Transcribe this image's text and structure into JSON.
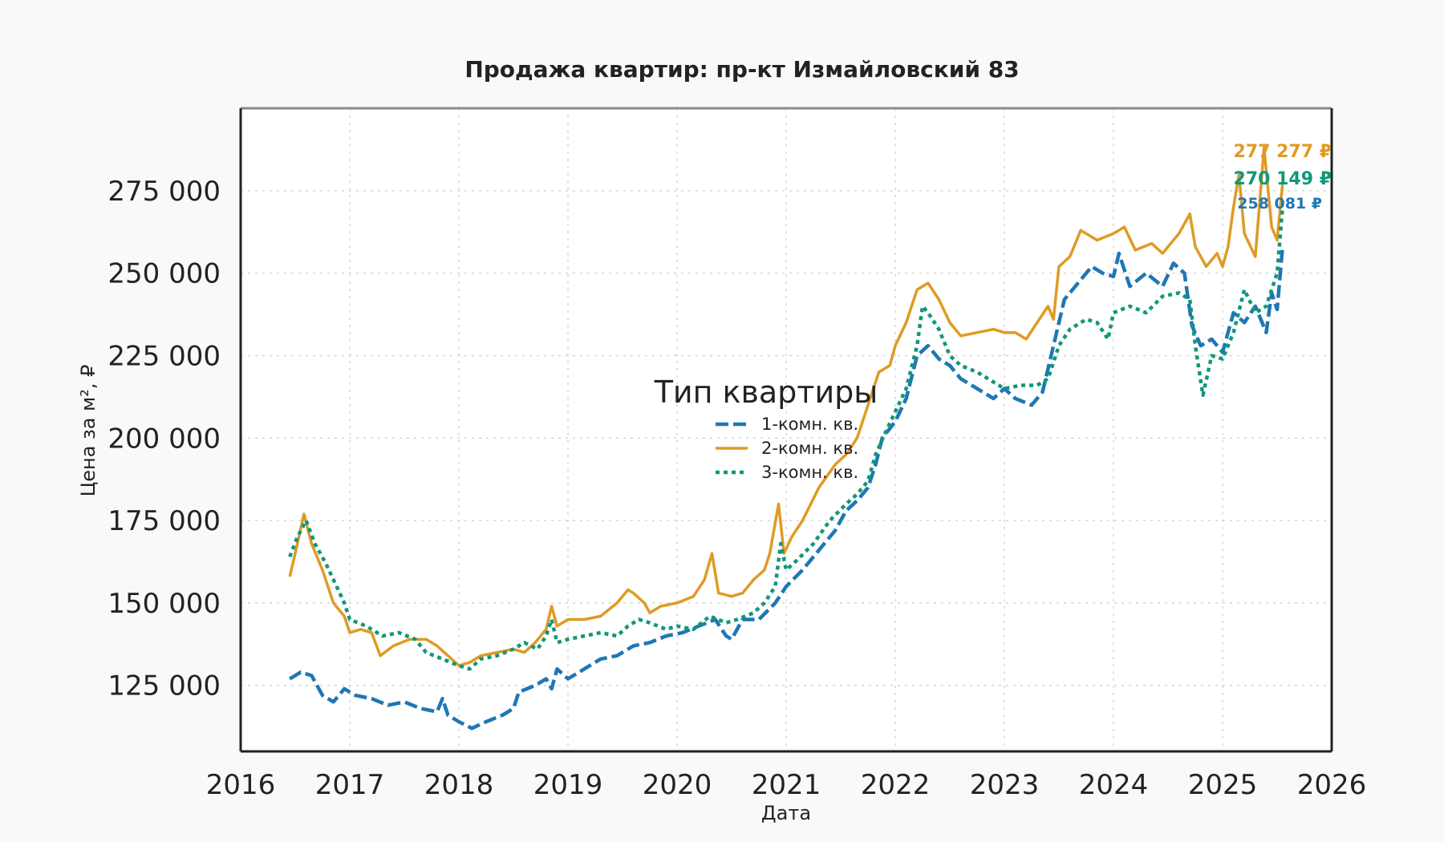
{
  "chart_data": {
    "type": "line",
    "title": "Продажа квартир: пр-кт Измайловский 83",
    "xlabel": "Дата",
    "ylabel": "Цена за м², ₽",
    "xlim": [
      2016,
      2026
    ],
    "ylim": [
      105000,
      300000
    ],
    "x_ticks": [
      "2016",
      "2017",
      "2018",
      "2019",
      "2020",
      "2021",
      "2022",
      "2023",
      "2024",
      "2025",
      "2026"
    ],
    "y_ticks": [
      "125 000",
      "150 000",
      "175 000",
      "200 000",
      "225 000",
      "250 000",
      "275 000"
    ],
    "y_tick_values": [
      125000,
      150000,
      175000,
      200000,
      225000,
      250000,
      275000
    ],
    "grid": true,
    "legend": {
      "title": "Тип квартиры",
      "placement": "center"
    },
    "series": [
      {
        "name": "1-комн. кв.",
        "color": "#1f77b4",
        "dash": "dashed",
        "end_label": "258 081 ₽",
        "points": [
          [
            2016.45,
            127000
          ],
          [
            2016.55,
            129000
          ],
          [
            2016.65,
            128000
          ],
          [
            2016.75,
            122000
          ],
          [
            2016.85,
            120000
          ],
          [
            2016.95,
            124000
          ],
          [
            2017.05,
            122000
          ],
          [
            2017.2,
            121000
          ],
          [
            2017.35,
            119000
          ],
          [
            2017.5,
            120000
          ],
          [
            2017.65,
            118000
          ],
          [
            2017.8,
            117000
          ],
          [
            2017.85,
            121000
          ],
          [
            2017.9,
            116000
          ],
          [
            2018.0,
            114000
          ],
          [
            2018.12,
            112000
          ],
          [
            2018.25,
            114000
          ],
          [
            2018.4,
            116000
          ],
          [
            2018.5,
            118000
          ],
          [
            2018.55,
            123000
          ],
          [
            2018.7,
            125000
          ],
          [
            2018.8,
            127000
          ],
          [
            2018.85,
            124000
          ],
          [
            2018.9,
            130000
          ],
          [
            2019.0,
            127000
          ],
          [
            2019.15,
            130000
          ],
          [
            2019.3,
            133000
          ],
          [
            2019.45,
            134000
          ],
          [
            2019.6,
            137000
          ],
          [
            2019.75,
            138000
          ],
          [
            2019.9,
            140000
          ],
          [
            2020.05,
            141000
          ],
          [
            2020.2,
            143000
          ],
          [
            2020.35,
            145000
          ],
          [
            2020.45,
            140000
          ],
          [
            2020.5,
            139000
          ],
          [
            2020.6,
            145000
          ],
          [
            2020.75,
            145000
          ],
          [
            2020.9,
            150000
          ],
          [
            2021.0,
            155000
          ],
          [
            2021.15,
            160000
          ],
          [
            2021.3,
            166000
          ],
          [
            2021.45,
            172000
          ],
          [
            2021.55,
            178000
          ],
          [
            2021.65,
            181000
          ],
          [
            2021.75,
            185000
          ],
          [
            2021.82,
            192000
          ],
          [
            2021.88,
            200000
          ],
          [
            2022.0,
            205000
          ],
          [
            2022.1,
            212000
          ],
          [
            2022.2,
            225000
          ],
          [
            2022.3,
            228000
          ],
          [
            2022.4,
            224000
          ],
          [
            2022.5,
            222000
          ],
          [
            2022.6,
            218000
          ],
          [
            2022.75,
            215000
          ],
          [
            2022.9,
            212000
          ],
          [
            2023.0,
            215000
          ],
          [
            2023.1,
            212000
          ],
          [
            2023.25,
            210000
          ],
          [
            2023.35,
            214000
          ],
          [
            2023.45,
            228000
          ],
          [
            2023.55,
            242000
          ],
          [
            2023.7,
            248000
          ],
          [
            2023.8,
            252000
          ],
          [
            2023.9,
            250000
          ],
          [
            2024.0,
            249000
          ],
          [
            2024.05,
            256000
          ],
          [
            2024.15,
            246000
          ],
          [
            2024.3,
            250000
          ],
          [
            2024.45,
            246000
          ],
          [
            2024.55,
            253000
          ],
          [
            2024.65,
            250000
          ],
          [
            2024.72,
            234000
          ],
          [
            2024.8,
            228000
          ],
          [
            2024.9,
            230000
          ],
          [
            2025.0,
            226000
          ],
          [
            2025.1,
            238000
          ],
          [
            2025.2,
            235000
          ],
          [
            2025.3,
            240000
          ],
          [
            2025.4,
            232000
          ],
          [
            2025.45,
            244000
          ],
          [
            2025.5,
            239000
          ],
          [
            2025.55,
            258081
          ]
        ]
      },
      {
        "name": "2-комн. кв.",
        "color": "#de9b24",
        "dash": "solid",
        "end_label": "277 277 ₽",
        "points": [
          [
            2016.45,
            158000
          ],
          [
            2016.5,
            165000
          ],
          [
            2016.58,
            177000
          ],
          [
            2016.65,
            168000
          ],
          [
            2016.75,
            160000
          ],
          [
            2016.85,
            150000
          ],
          [
            2016.95,
            146000
          ],
          [
            2017.0,
            141000
          ],
          [
            2017.1,
            142000
          ],
          [
            2017.2,
            141000
          ],
          [
            2017.28,
            134000
          ],
          [
            2017.4,
            137000
          ],
          [
            2017.55,
            139000
          ],
          [
            2017.7,
            139000
          ],
          [
            2017.8,
            137000
          ],
          [
            2017.9,
            134000
          ],
          [
            2018.0,
            131000
          ],
          [
            2018.1,
            132000
          ],
          [
            2018.2,
            134000
          ],
          [
            2018.35,
            135000
          ],
          [
            2018.5,
            136000
          ],
          [
            2018.6,
            135000
          ],
          [
            2018.7,
            138000
          ],
          [
            2018.8,
            142000
          ],
          [
            2018.85,
            149000
          ],
          [
            2018.9,
            143000
          ],
          [
            2019.0,
            145000
          ],
          [
            2019.15,
            145000
          ],
          [
            2019.3,
            146000
          ],
          [
            2019.45,
            150000
          ],
          [
            2019.55,
            154000
          ],
          [
            2019.6,
            153000
          ],
          [
            2019.7,
            150000
          ],
          [
            2019.75,
            147000
          ],
          [
            2019.85,
            149000
          ],
          [
            2020.0,
            150000
          ],
          [
            2020.15,
            152000
          ],
          [
            2020.25,
            157000
          ],
          [
            2020.32,
            165000
          ],
          [
            2020.38,
            153000
          ],
          [
            2020.5,
            152000
          ],
          [
            2020.6,
            153000
          ],
          [
            2020.7,
            157000
          ],
          [
            2020.8,
            160000
          ],
          [
            2020.85,
            165000
          ],
          [
            2020.93,
            180000
          ],
          [
            2020.98,
            165000
          ],
          [
            2021.05,
            170000
          ],
          [
            2021.15,
            175000
          ],
          [
            2021.3,
            185000
          ],
          [
            2021.45,
            192000
          ],
          [
            2021.55,
            195000
          ],
          [
            2021.65,
            200000
          ],
          [
            2021.75,
            210000
          ],
          [
            2021.85,
            220000
          ],
          [
            2021.95,
            222000
          ],
          [
            2022.0,
            228000
          ],
          [
            2022.1,
            235000
          ],
          [
            2022.2,
            245000
          ],
          [
            2022.3,
            247000
          ],
          [
            2022.4,
            242000
          ],
          [
            2022.5,
            235000
          ],
          [
            2022.6,
            231000
          ],
          [
            2022.75,
            232000
          ],
          [
            2022.9,
            233000
          ],
          [
            2023.0,
            232000
          ],
          [
            2023.1,
            232000
          ],
          [
            2023.2,
            230000
          ],
          [
            2023.3,
            235000
          ],
          [
            2023.4,
            240000
          ],
          [
            2023.45,
            236000
          ],
          [
            2023.5,
            252000
          ],
          [
            2023.6,
            255000
          ],
          [
            2023.7,
            263000
          ],
          [
            2023.85,
            260000
          ],
          [
            2024.0,
            262000
          ],
          [
            2024.1,
            264000
          ],
          [
            2024.2,
            257000
          ],
          [
            2024.35,
            259000
          ],
          [
            2024.45,
            256000
          ],
          [
            2024.6,
            262000
          ],
          [
            2024.7,
            268000
          ],
          [
            2024.75,
            258000
          ],
          [
            2024.85,
            252000
          ],
          [
            2024.95,
            256000
          ],
          [
            2025.0,
            252000
          ],
          [
            2025.05,
            258000
          ],
          [
            2025.1,
            270000
          ],
          [
            2025.15,
            280000
          ],
          [
            2025.2,
            262000
          ],
          [
            2025.3,
            255000
          ],
          [
            2025.38,
            288000
          ],
          [
            2025.45,
            264000
          ],
          [
            2025.5,
            260000
          ],
          [
            2025.55,
            277277
          ]
        ]
      },
      {
        "name": "3-комн. кв.",
        "color": "#11977a",
        "dash": "dotted",
        "end_label": "270 149 ₽",
        "points": [
          [
            2016.45,
            164000
          ],
          [
            2016.52,
            170000
          ],
          [
            2016.6,
            175000
          ],
          [
            2016.68,
            168000
          ],
          [
            2016.78,
            162000
          ],
          [
            2016.88,
            155000
          ],
          [
            2016.95,
            150000
          ],
          [
            2017.0,
            145000
          ],
          [
            2017.15,
            143000
          ],
          [
            2017.3,
            140000
          ],
          [
            2017.45,
            141000
          ],
          [
            2017.6,
            139000
          ],
          [
            2017.7,
            135000
          ],
          [
            2017.85,
            133000
          ],
          [
            2018.0,
            131000
          ],
          [
            2018.1,
            130000
          ],
          [
            2018.2,
            133000
          ],
          [
            2018.35,
            134000
          ],
          [
            2018.5,
            136000
          ],
          [
            2018.6,
            138000
          ],
          [
            2018.72,
            136000
          ],
          [
            2018.8,
            140000
          ],
          [
            2018.85,
            145000
          ],
          [
            2018.9,
            138000
          ],
          [
            2019.0,
            139000
          ],
          [
            2019.15,
            140000
          ],
          [
            2019.3,
            141000
          ],
          [
            2019.45,
            140000
          ],
          [
            2019.55,
            143000
          ],
          [
            2019.65,
            145000
          ],
          [
            2019.75,
            144000
          ],
          [
            2019.9,
            142000
          ],
          [
            2020.0,
            143000
          ],
          [
            2020.15,
            142000
          ],
          [
            2020.3,
            146000
          ],
          [
            2020.45,
            144000
          ],
          [
            2020.55,
            145000
          ],
          [
            2020.7,
            147000
          ],
          [
            2020.8,
            150000
          ],
          [
            2020.9,
            155000
          ],
          [
            2020.95,
            168000
          ],
          [
            2021.0,
            160000
          ],
          [
            2021.1,
            163000
          ],
          [
            2021.25,
            168000
          ],
          [
            2021.4,
            175000
          ],
          [
            2021.55,
            180000
          ],
          [
            2021.65,
            183000
          ],
          [
            2021.75,
            187000
          ],
          [
            2021.82,
            195000
          ],
          [
            2021.9,
            201000
          ],
          [
            2022.0,
            208000
          ],
          [
            2022.1,
            215000
          ],
          [
            2022.2,
            228000
          ],
          [
            2022.25,
            240000
          ],
          [
            2022.3,
            238000
          ],
          [
            2022.4,
            233000
          ],
          [
            2022.5,
            225000
          ],
          [
            2022.6,
            222000
          ],
          [
            2022.75,
            220000
          ],
          [
            2022.9,
            217000
          ],
          [
            2023.0,
            215000
          ],
          [
            2023.15,
            216000
          ],
          [
            2023.3,
            216000
          ],
          [
            2023.4,
            218000
          ],
          [
            2023.5,
            228000
          ],
          [
            2023.6,
            233000
          ],
          [
            2023.75,
            236000
          ],
          [
            2023.85,
            235000
          ],
          [
            2023.95,
            230000
          ],
          [
            2024.0,
            238000
          ],
          [
            2024.15,
            240000
          ],
          [
            2024.3,
            238000
          ],
          [
            2024.45,
            243000
          ],
          [
            2024.6,
            244000
          ],
          [
            2024.7,
            242000
          ],
          [
            2024.75,
            228000
          ],
          [
            2024.82,
            213000
          ],
          [
            2024.9,
            225000
          ],
          [
            2025.0,
            224000
          ],
          [
            2025.1,
            232000
          ],
          [
            2025.2,
            245000
          ],
          [
            2025.3,
            238000
          ],
          [
            2025.4,
            240000
          ],
          [
            2025.5,
            250000
          ],
          [
            2025.55,
            270149
          ]
        ]
      }
    ]
  }
}
